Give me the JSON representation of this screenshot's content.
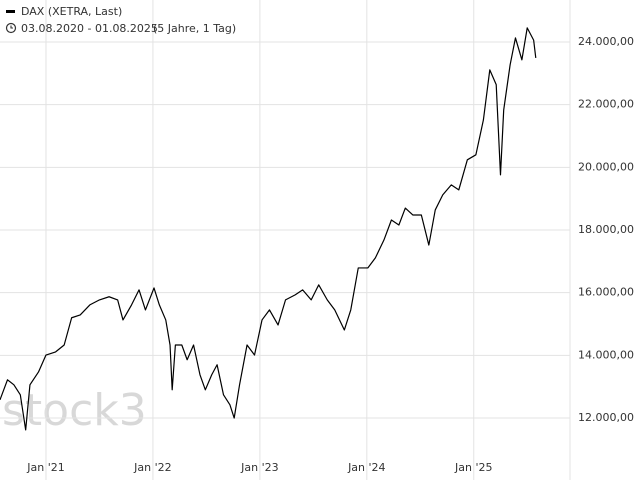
{
  "chart_data": {
    "type": "line",
    "subtitle": "03.08.2020 - 01.08.2025",
    "subtitle_note": "(5 Jahre, 1 Tag)",
    "watermark": "stock3",
    "x": [
      2020.57,
      2020.64,
      2020.7,
      2020.76,
      2020.81,
      2020.85,
      2020.93,
      2021.0,
      2021.09,
      2021.17,
      2021.24,
      2021.32,
      2021.41,
      2021.5,
      2021.59,
      2021.67,
      2021.72,
      2021.8,
      2021.87,
      2021.93,
      2022.01,
      2022.06,
      2022.12,
      2022.16,
      2022.18,
      2022.21,
      2022.27,
      2022.32,
      2022.38,
      2022.44,
      2022.49,
      2022.55,
      2022.6,
      2022.66,
      2022.72,
      2022.76,
      2022.81,
      2022.88,
      2022.95,
      2023.02,
      2023.09,
      2023.17,
      2023.24,
      2023.33,
      2023.4,
      2023.48,
      2023.55,
      2023.63,
      2023.7,
      2023.79,
      2023.85,
      2023.92,
      2024.01,
      2024.08,
      2024.16,
      2024.23,
      2024.3,
      2024.36,
      2024.43,
      2024.51,
      2024.58,
      2024.64,
      2024.71,
      2024.79,
      2024.86,
      2024.94,
      2025.02,
      2025.09,
      2025.15,
      2025.21,
      2025.25,
      2025.28,
      2025.34,
      2025.39,
      2025.45,
      2025.5,
      2025.56,
      2025.58
    ],
    "series": [
      {
        "name": "DAX (XETRA, Last)",
        "color": "#000000",
        "values": [
          12580,
          13220,
          13060,
          12740,
          11620,
          13060,
          13470,
          14010,
          14110,
          14330,
          15200,
          15290,
          15610,
          15770,
          15870,
          15770,
          15130,
          15610,
          16090,
          15450,
          16150,
          15610,
          15130,
          14330,
          12900,
          14330,
          14330,
          13860,
          14330,
          13380,
          12900,
          13380,
          13700,
          12740,
          12420,
          12000,
          13060,
          14330,
          14010,
          15130,
          15450,
          14970,
          15770,
          15930,
          16090,
          15770,
          16250,
          15770,
          15450,
          14810,
          15450,
          16790,
          16790,
          17110,
          17680,
          18320,
          18160,
          18700,
          18480,
          18480,
          17520,
          18640,
          19120,
          19440,
          19280,
          20240,
          20400,
          21510,
          23110,
          22640,
          19760,
          21830,
          23270,
          24130,
          23430,
          24450,
          24060,
          23490
        ]
      }
    ],
    "xlim": [
      2020.57,
      2025.9
    ],
    "xticks": [
      {
        "value": 2021,
        "label": "Jan '21"
      },
      {
        "value": 2022,
        "label": "Jan '22"
      },
      {
        "value": 2023,
        "label": "Jan '23"
      },
      {
        "value": 2024,
        "label": "Jan '24"
      },
      {
        "value": 2025,
        "label": "Jan '25"
      }
    ],
    "ylim": [
      10820,
      25340
    ],
    "yticks": [
      {
        "value": 12000,
        "label": "12.000,00"
      },
      {
        "value": 14000,
        "label": "14.000,00"
      },
      {
        "value": 16000,
        "label": "16.000,00"
      },
      {
        "value": 18000,
        "label": "18.000,00"
      },
      {
        "value": 20000,
        "label": "20.000,00"
      },
      {
        "value": 22000,
        "label": "22.000,00"
      },
      {
        "value": 24000,
        "label": "24.000,00"
      }
    ],
    "grid": true
  }
}
